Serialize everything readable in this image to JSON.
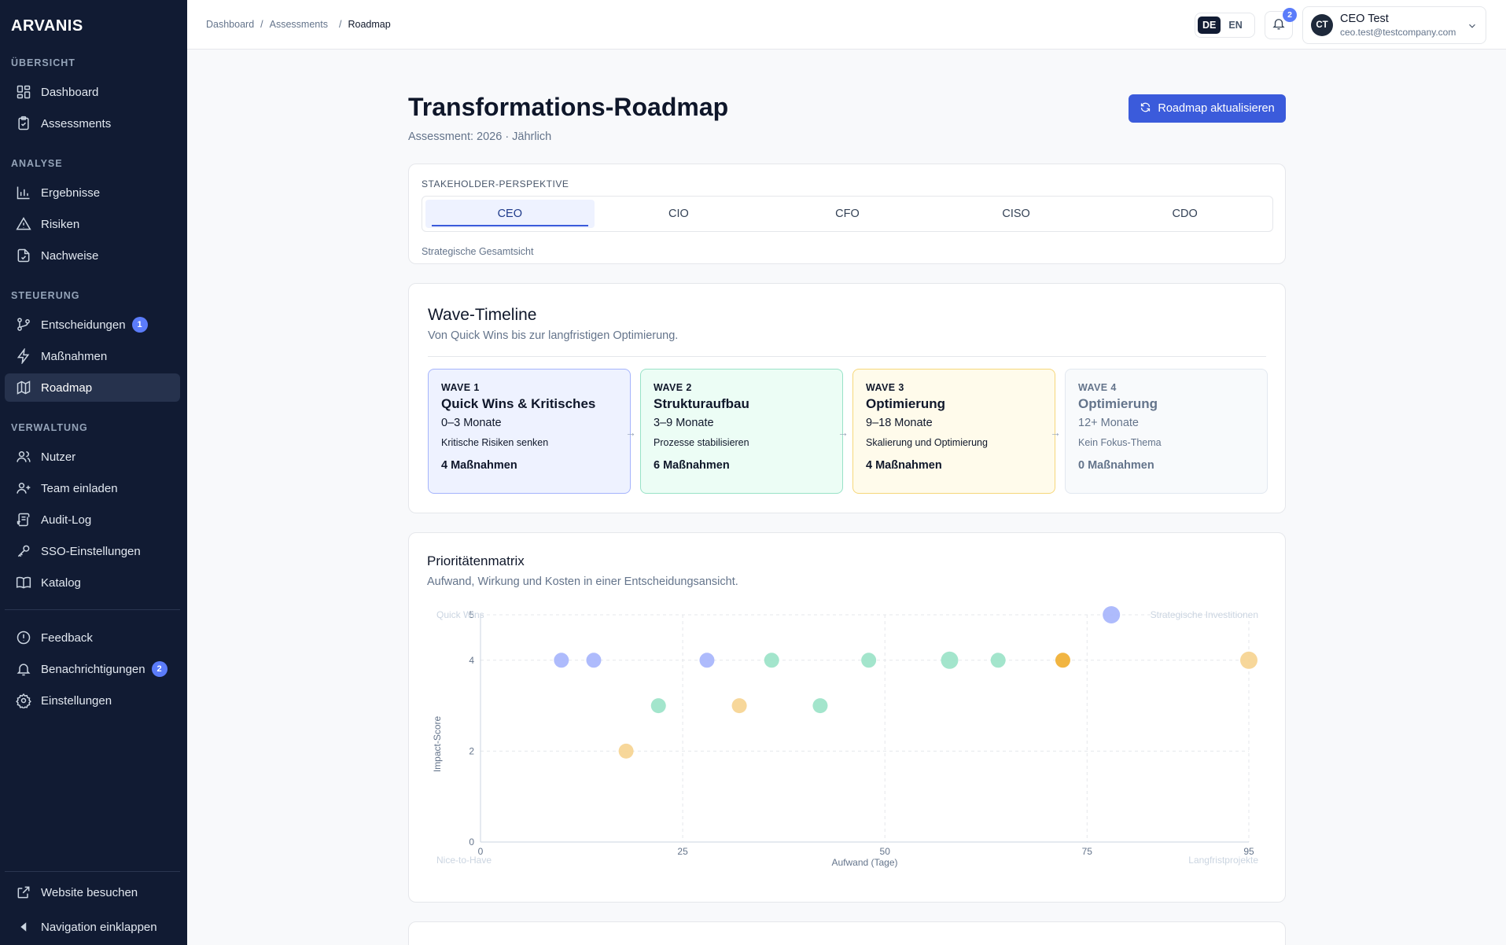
{
  "sidebar": {
    "brand": "ARVANIS",
    "sections": {
      "overview": "ÜBERSICHT",
      "analysis": "ANALYSE",
      "control": "STEUERUNG",
      "admin": "VERWALTUNG"
    },
    "items": {
      "dashboard": "Dashboard",
      "assessments": "Assessments",
      "results": "Ergebnisse",
      "risks": "Risiken",
      "evidence": "Nachweise",
      "decisions": "Entscheidungen",
      "decisions_badge": "1",
      "measures": "Maßnahmen",
      "roadmap": "Roadmap",
      "users": "Nutzer",
      "invite": "Team einladen",
      "audit": "Audit-Log",
      "sso": "SSO-Einstellungen",
      "catalog": "Katalog",
      "feedback": "Feedback",
      "notifications": "Benachrichtigungen",
      "notifications_badge": "2",
      "settings": "Einstellungen",
      "website": "Website besuchen",
      "collapse": "Navigation einklappen"
    }
  },
  "header": {
    "breadcrumb": [
      "Dashboard",
      "/",
      "Assessments",
      "/",
      "Roadmap"
    ],
    "lang_de": "DE",
    "lang_en": "EN",
    "bell_count": "2",
    "user_initials": "CT",
    "user_name": "CEO Test",
    "user_email": "ceo.test@testcompany.com"
  },
  "page": {
    "title": "Transformations-Roadmap",
    "subtitle": "Assessment: 2026 · Jährlich",
    "refresh_label": "Roadmap aktualisieren"
  },
  "stakeholder": {
    "label": "STAKEHOLDER-PERSPEKTIVE",
    "tabs": [
      "CEO",
      "CIO",
      "CFO",
      "CISO",
      "CDO"
    ],
    "active": "CEO",
    "description": "Strategische Gesamtsicht"
  },
  "waves": {
    "title": "Wave-Timeline",
    "subtitle": "Von Quick Wins bis zur langfristigen Optimierung.",
    "items": [
      {
        "label": "WAVE 1",
        "title": "Quick Wins & Kritisches",
        "duration": "0–3 Monate",
        "focus": "Kritische Risiken senken",
        "count": "4 Maßnahmen",
        "bg": "#eef2ff",
        "border": "#a5b4fc",
        "ink": "#0f172a"
      },
      {
        "label": "WAVE 2",
        "title": "Strukturaufbau",
        "duration": "3–9 Monate",
        "focus": "Prozesse stabilisieren",
        "count": "6 Maßnahmen",
        "bg": "#ecfdf5",
        "border": "#99e2c7",
        "ink": "#0f172a"
      },
      {
        "label": "WAVE 3",
        "title": "Optimierung",
        "duration": "9–18 Monate",
        "focus": "Skalierung und Optimierung",
        "count": "4 Maßnahmen",
        "bg": "#fffbeb",
        "border": "#f6d77a",
        "ink": "#0f172a"
      },
      {
        "label": "WAVE 4",
        "title": "Optimierung",
        "duration": "12+ Monate",
        "focus": "Kein Fokus-Thema",
        "count": "0 Maßnahmen",
        "bg": "#f8fafc",
        "border": "#e2e8f0",
        "ink": "#64748b"
      }
    ],
    "arrow": "→"
  },
  "matrix": {
    "title": "Prioritätenmatrix",
    "subtitle": "Aufwand, Wirkung und Kosten in einer Entscheidungsansicht."
  },
  "chart_data": {
    "type": "scatter",
    "xlabel": "Aufwand (Tage)",
    "ylabel": "Impact-Score",
    "xlim": [
      0,
      95
    ],
    "ylim": [
      0,
      5
    ],
    "xticks": [
      0,
      25,
      50,
      75,
      95
    ],
    "yticks": [
      0,
      2,
      4,
      5
    ],
    "quadrant_labels": {
      "top_left": "Quick Wins",
      "top_right": "Strategische Investitionen",
      "bottom_left": "Nice-to-Have",
      "bottom_right": "Langfristprojekte"
    },
    "series": [
      {
        "color": "#a5b4fc",
        "points": [
          [
            10,
            4
          ],
          [
            14,
            4
          ],
          [
            28,
            4
          ],
          [
            78,
            5
          ]
        ]
      },
      {
        "color": "#99e2c7",
        "points": [
          [
            22,
            3
          ],
          [
            36,
            4
          ],
          [
            42,
            3
          ],
          [
            48,
            4
          ],
          [
            58,
            4
          ],
          [
            64,
            4
          ]
        ]
      },
      {
        "color": "#f6d38f",
        "points": [
          [
            18,
            2
          ],
          [
            32,
            3
          ],
          [
            95,
            4
          ]
        ]
      },
      {
        "color": "#f0ad2e",
        "points": [
          [
            72,
            4
          ]
        ]
      }
    ]
  }
}
